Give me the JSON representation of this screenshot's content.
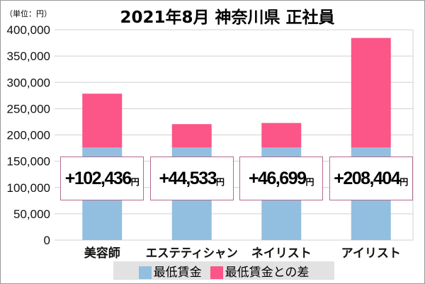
{
  "chart_data": {
    "type": "bar",
    "stacked": true,
    "title": "2021年8月 神奈川県 正社員",
    "unit": "（単位：円）",
    "categories": [
      "美容師",
      "エステティシャン",
      "ネイリスト",
      "アイリスト"
    ],
    "series": [
      {
        "name": "最低賃金",
        "color": "#92bfe0",
        "values": [
          176000,
          176000,
          176000,
          176000
        ]
      },
      {
        "name": "最低賃金との差",
        "color": "#fc5587",
        "values": [
          102436,
          44533,
          46699,
          208404
        ]
      }
    ],
    "data_labels": [
      "+102,436",
      "+44,533",
      "+46,699",
      "+208,404"
    ],
    "data_label_unit": "円",
    "yticks": [
      "0",
      "50,000",
      "100,000",
      "150,000",
      "200,000",
      "250,000",
      "300,000",
      "350,000",
      "400,000"
    ],
    "ylim": [
      0,
      400000
    ],
    "grid": true,
    "legend": "bottom"
  }
}
